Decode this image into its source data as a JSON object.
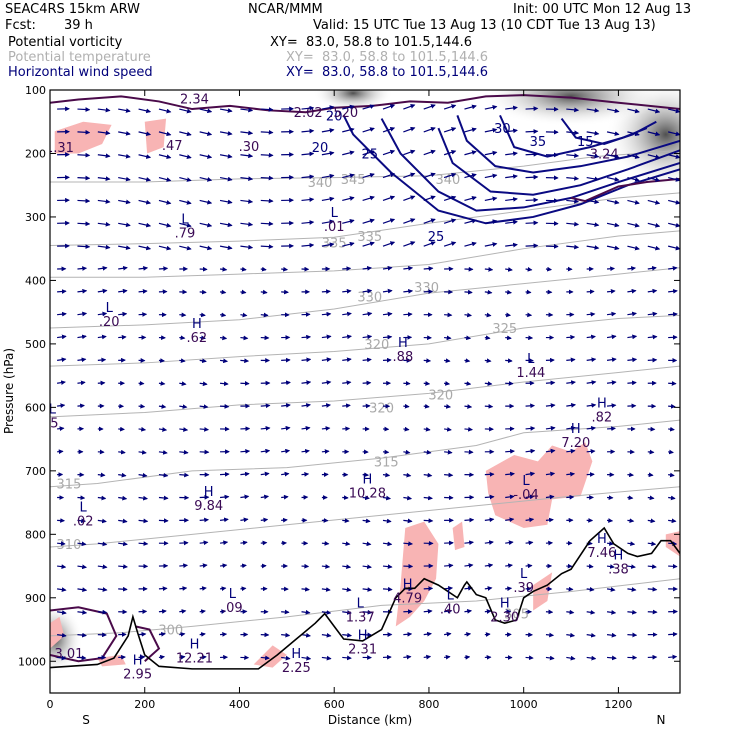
{
  "header": {
    "model": "SEAC4RS 15km ARW",
    "org": "NCAR/MMM",
    "init": "Init: 00 UTC Mon 12 Aug 13",
    "fcst_label": "Fcst:",
    "fcst_value": "39 h",
    "valid": "Valid: 15 UTC Tue 13 Aug 13 (10 CDT Tue 13 Aug 13)",
    "fields": [
      {
        "name": "Potential vorticity",
        "xy": "XY=  83.0, 58.8 to 101.5,144.6",
        "color": "#000000"
      },
      {
        "name": "Potential temperature",
        "xy": "XY=  83.0, 58.8 to 101.5,144.6",
        "color": "#b0b0b0"
      },
      {
        "name": "Horizontal wind speed",
        "xy": "XY=  83.0, 58.8 to 101.5,144.6",
        "color": "#00007a"
      }
    ]
  },
  "chart_data": {
    "type": "cross-section",
    "xlabel": "Distance (km)",
    "ylabel": "Pressure (hPa)",
    "xlim": [
      0,
      1330
    ],
    "ylim": [
      1050,
      100
    ],
    "x_ticks": [
      "0",
      "200",
      "400",
      "600",
      "800",
      "1000",
      "1200"
    ],
    "x_tick_values": [
      0,
      200,
      400,
      600,
      800,
      1000,
      1200
    ],
    "y_ticks": [
      "100",
      "200",
      "300",
      "400",
      "500",
      "600",
      "700",
      "800",
      "900",
      "1000"
    ],
    "y_tick_values": [
      100,
      200,
      300,
      400,
      500,
      600,
      700,
      800,
      900,
      1000
    ],
    "x_end_labels": {
      "left": "S",
      "right": "N"
    },
    "theta_contours": [
      {
        "label": "345",
        "x": 640,
        "p": 240
      },
      {
        "label": "340",
        "x": 570,
        "p": 245
      },
      {
        "label": "340",
        "x": 840,
        "p": 240
      },
      {
        "label": "335",
        "x": 600,
        "p": 340
      },
      {
        "label": "335",
        "x": 675,
        "p": 330
      },
      {
        "label": "330",
        "x": 795,
        "p": 410
      },
      {
        "label": "330",
        "x": 675,
        "p": 425
      },
      {
        "label": "325",
        "x": 960,
        "p": 475
      },
      {
        "label": "320",
        "x": 690,
        "p": 500
      },
      {
        "label": "320",
        "x": 825,
        "p": 580
      },
      {
        "label": "320",
        "x": 700,
        "p": 600
      },
      {
        "label": "315",
        "x": 710,
        "p": 685
      },
      {
        "label": "315",
        "x": 40,
        "p": 720
      },
      {
        "label": "310",
        "x": 40,
        "p": 815
      },
      {
        "label": "305",
        "x": 985,
        "p": 925
      },
      {
        "label": "300",
        "x": 255,
        "p": 950
      }
    ],
    "wind_speed_contours": [
      {
        "label": "20",
        "x": 570,
        "p": 190
      },
      {
        "label": "25",
        "x": 675,
        "p": 200
      },
      {
        "label": "25",
        "x": 815,
        "p": 330
      },
      {
        "label": "30",
        "x": 955,
        "p": 160
      },
      {
        "label": "35",
        "x": 1030,
        "p": 180
      },
      {
        "label": "15",
        "x": 1130,
        "p": 180
      },
      {
        "label": "20",
        "x": 600,
        "p": 140
      }
    ],
    "pv_labels": [
      {
        "label": "2.34",
        "x": 305,
        "p": 113
      },
      {
        "label": "2.02",
        "x": 545,
        "p": 135
      },
      {
        "label": ".520",
        "x": 620,
        "p": 135
      },
      {
        "label": "1.31",
        "x": 20,
        "p": 190
      },
      {
        "label": ".47",
        "x": 258,
        "p": 187
      },
      {
        "label": ".30",
        "x": 420,
        "p": 188
      },
      {
        "label": "3.24",
        "x": 1170,
        "p": 200
      },
      {
        "label": "3.01",
        "x": 40,
        "p": 987
      }
    ],
    "extrema": [
      {
        "kind": "L",
        "value": ".79",
        "x": 285,
        "p": 310
      },
      {
        "kind": "L",
        "value": ".01",
        "x": 600,
        "p": 300
      },
      {
        "kind": "L",
        "value": ".20",
        "x": 125,
        "p": 450
      },
      {
        "kind": "H",
        "value": ".62",
        "x": 310,
        "p": 475
      },
      {
        "kind": "H",
        "value": ".88",
        "x": 745,
        "p": 505
      },
      {
        "kind": "L",
        "value": "1.44",
        "x": 1015,
        "p": 530
      },
      {
        "kind": "H",
        "value": ".82",
        "x": 1165,
        "p": 600
      },
      {
        "kind": "H",
        "value": "7.20",
        "x": 1110,
        "p": 640
      },
      {
        "kind": "H",
        "value": "10.28",
        "x": 670,
        "p": 720
      },
      {
        "kind": "L",
        "value": "-.04",
        "x": 1005,
        "p": 722
      },
      {
        "kind": "H",
        "value": "9.84",
        "x": 335,
        "p": 740
      },
      {
        "kind": "L",
        "value": ".02",
        "x": 70,
        "p": 764
      },
      {
        "kind": "H",
        "value": "7.46",
        "x": 1165,
        "p": 814
      },
      {
        "kind": "H",
        "value": ".38",
        "x": 1200,
        "p": 840
      },
      {
        "kind": "L",
        "value": ".39",
        "x": 1000,
        "p": 869
      },
      {
        "kind": "H",
        "value": "4.79",
        "x": 755,
        "p": 885
      },
      {
        "kind": "L",
        "value": ".09",
        "x": 385,
        "p": 900
      },
      {
        "kind": "L",
        "value": ".40",
        "x": 845,
        "p": 903
      },
      {
        "kind": "L",
        "value": "1.37",
        "x": 655,
        "p": 915
      },
      {
        "kind": "H",
        "value": "2.30",
        "x": 960,
        "p": 915
      },
      {
        "kind": "H",
        "value": "2.31",
        "x": 660,
        "p": 966
      },
      {
        "kind": "H",
        "value": "12.21",
        "x": 305,
        "p": 980
      },
      {
        "kind": "H",
        "value": "2.25",
        "x": 520,
        "p": 995
      },
      {
        "kind": "H",
        "value": "2.95",
        "x": 185,
        "p": 1005
      },
      {
        "kind": "L",
        "value": ".5",
        "x": 5,
        "p": 610
      }
    ],
    "terrain": [
      [
        0,
        1010
      ],
      [
        40,
        1008
      ],
      [
        100,
        1005
      ],
      [
        135,
        995
      ],
      [
        165,
        960
      ],
      [
        175,
        930
      ],
      [
        185,
        955
      ],
      [
        200,
        990
      ],
      [
        230,
        1008
      ],
      [
        300,
        1012
      ],
      [
        440,
        1012
      ],
      [
        480,
        990
      ],
      [
        520,
        965
      ],
      [
        560,
        940
      ],
      [
        580,
        925
      ],
      [
        600,
        945
      ],
      [
        620,
        965
      ],
      [
        660,
        968
      ],
      [
        700,
        950
      ],
      [
        730,
        900
      ],
      [
        750,
        885
      ],
      [
        770,
        885
      ],
      [
        790,
        870
      ],
      [
        820,
        880
      ],
      [
        860,
        900
      ],
      [
        875,
        880
      ],
      [
        880,
        875
      ],
      [
        900,
        895
      ],
      [
        920,
        900
      ],
      [
        940,
        935
      ],
      [
        960,
        940
      ],
      [
        985,
        935
      ],
      [
        1000,
        900
      ],
      [
        1020,
        890
      ],
      [
        1050,
        880
      ],
      [
        1080,
        862
      ],
      [
        1100,
        855
      ],
      [
        1140,
        810
      ],
      [
        1170,
        790
      ],
      [
        1190,
        815
      ],
      [
        1220,
        830
      ],
      [
        1240,
        835
      ],
      [
        1270,
        830
      ],
      [
        1290,
        810
      ],
      [
        1310,
        810
      ],
      [
        1330,
        830
      ]
    ]
  }
}
